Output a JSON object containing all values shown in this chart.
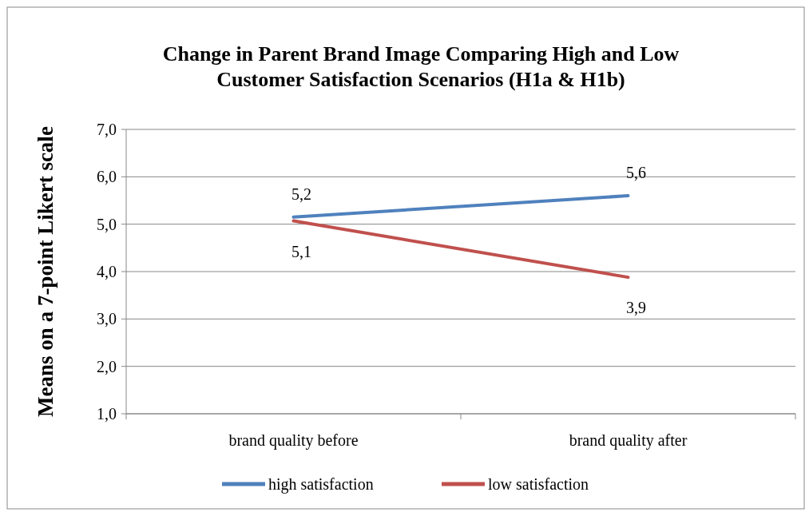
{
  "chart_data": {
    "type": "line",
    "title": "Change in Parent Brand Image Comparing High and Low Customer Satisfaction Scenarios (H1a & H1b)",
    "ylabel": "Means on a 7-point Likert scale",
    "categories": [
      "brand quality before",
      "brand quality after"
    ],
    "series": [
      {
        "name": "high satisfaction",
        "color": "#4f81bd",
        "values": [
          5.15,
          5.6
        ],
        "value_labels": [
          "5,2",
          "5,6"
        ]
      },
      {
        "name": "low satisfaction",
        "color": "#c0504d",
        "values": [
          5.07,
          3.88
        ],
        "value_labels": [
          "5,1",
          "3,9"
        ]
      }
    ],
    "ylim": [
      1,
      7
    ],
    "yticks": [
      {
        "value": 1,
        "label": "1,0"
      },
      {
        "value": 2,
        "label": "2,0"
      },
      {
        "value": 3,
        "label": "3,0"
      },
      {
        "value": 4,
        "label": "4,0"
      },
      {
        "value": 5,
        "label": "5,0"
      },
      {
        "value": 6,
        "label": "6,0"
      },
      {
        "value": 7,
        "label": "7,0"
      }
    ],
    "grid": "y",
    "legend": "bottom",
    "marker": "none",
    "line_style": "solid"
  }
}
